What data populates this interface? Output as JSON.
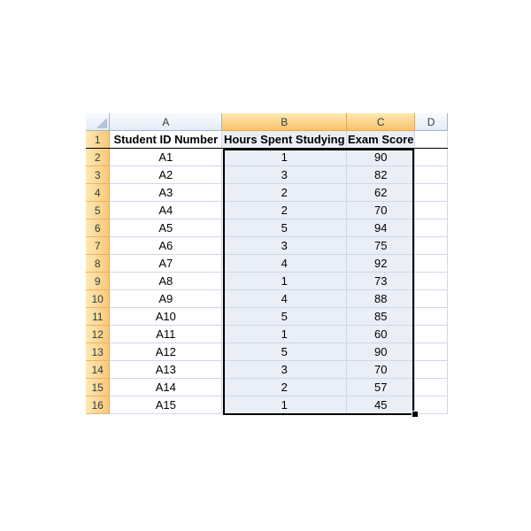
{
  "columns": [
    "A",
    "B",
    "C",
    "D"
  ],
  "selected_columns": [
    "B",
    "C"
  ],
  "headers": {
    "a": "Student ID Number",
    "b": "Hours Spent Studying",
    "c": "Exam Score"
  },
  "rows": [
    {
      "n": "1"
    },
    {
      "n": "2",
      "a": "A1",
      "b": "1",
      "c": "90"
    },
    {
      "n": "3",
      "a": "A2",
      "b": "3",
      "c": "82"
    },
    {
      "n": "4",
      "a": "A3",
      "b": "2",
      "c": "62"
    },
    {
      "n": "5",
      "a": "A4",
      "b": "2",
      "c": "70"
    },
    {
      "n": "6",
      "a": "A5",
      "b": "5",
      "c": "94"
    },
    {
      "n": "7",
      "a": "A6",
      "b": "3",
      "c": "75"
    },
    {
      "n": "8",
      "a": "A7",
      "b": "4",
      "c": "92"
    },
    {
      "n": "9",
      "a": "A8",
      "b": "1",
      "c": "73"
    },
    {
      "n": "10",
      "a": "A9",
      "b": "4",
      "c": "88"
    },
    {
      "n": "11",
      "a": "A10",
      "b": "5",
      "c": "85"
    },
    {
      "n": "12",
      "a": "A11",
      "b": "1",
      "c": "60"
    },
    {
      "n": "13",
      "a": "A12",
      "b": "5",
      "c": "90"
    },
    {
      "n": "14",
      "a": "A13",
      "b": "3",
      "c": "70"
    },
    {
      "n": "15",
      "a": "A14",
      "b": "2",
      "c": "57"
    },
    {
      "n": "16",
      "a": "A15",
      "b": "1",
      "c": "45"
    }
  ],
  "colors": {
    "selected_header": "#f8c26a",
    "selection_fill": "#eaeef6",
    "gridline": "#d0d7e5"
  }
}
